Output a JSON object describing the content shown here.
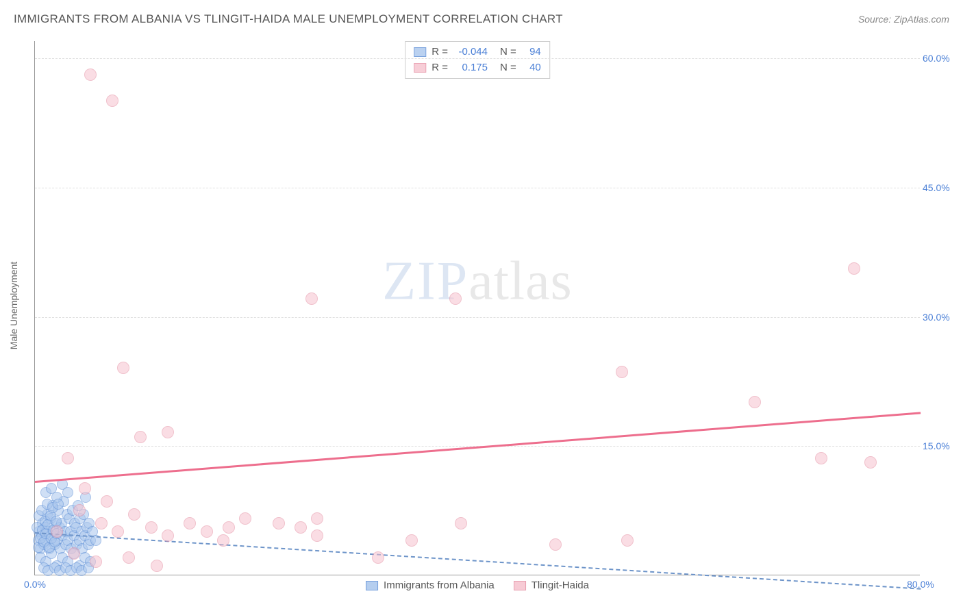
{
  "title": "IMMIGRANTS FROM ALBANIA VS TLINGIT-HAIDA MALE UNEMPLOYMENT CORRELATION CHART",
  "source": "Source: ZipAtlas.com",
  "watermark_a": "ZIP",
  "watermark_b": "atlas",
  "chart": {
    "type": "scatter",
    "ylabel": "Male Unemployment",
    "xlim": [
      0,
      80
    ],
    "ylim": [
      0,
      62
    ],
    "xticks": [
      {
        "v": 0,
        "label": "0.0%"
      },
      {
        "v": 80,
        "label": "80.0%"
      }
    ],
    "yticks": [
      {
        "v": 15,
        "label": "15.0%"
      },
      {
        "v": 30,
        "label": "30.0%"
      },
      {
        "v": 45,
        "label": "45.0%"
      },
      {
        "v": 60,
        "label": "60.0%"
      }
    ],
    "grid_color": "#e0e0e0",
    "background_color": "#ffffff",
    "axis_color": "#999999",
    "label_fontsize": 14,
    "tick_color": "#4a7fd6"
  },
  "series": [
    {
      "name": "Immigrants from Albania",
      "marker_fill": "#a9c6ed",
      "marker_stroke": "#5e8fd6",
      "marker_fill_opacity": 0.55,
      "marker_radius": 8,
      "R": "-0.044",
      "N": "94",
      "trend": {
        "x0": 0,
        "y0": 5.0,
        "x1": 80,
        "y1": -1.5,
        "color": "#6d94c9",
        "dashed": true,
        "width": 2
      },
      "points": [
        [
          0.3,
          4.0
        ],
        [
          0.4,
          5.0
        ],
        [
          0.5,
          3.0
        ],
        [
          0.6,
          4.5
        ],
        [
          0.7,
          6.0
        ],
        [
          0.8,
          3.5
        ],
        [
          0.9,
          5.5
        ],
        [
          1.0,
          4.0
        ],
        [
          1.1,
          7.0
        ],
        [
          1.2,
          5.0
        ],
        [
          1.3,
          3.0
        ],
        [
          1.4,
          6.5
        ],
        [
          1.5,
          4.5
        ],
        [
          1.6,
          8.0
        ],
        [
          1.7,
          5.0
        ],
        [
          1.8,
          3.5
        ],
        [
          1.9,
          6.0
        ],
        [
          2.0,
          4.0
        ],
        [
          2.1,
          7.5
        ],
        [
          2.2,
          5.5
        ],
        [
          2.3,
          3.0
        ],
        [
          2.4,
          6.0
        ],
        [
          2.5,
          4.5
        ],
        [
          2.6,
          8.5
        ],
        [
          2.7,
          5.0
        ],
        [
          2.8,
          3.5
        ],
        [
          2.9,
          7.0
        ],
        [
          3.0,
          4.0
        ],
        [
          3.1,
          6.5
        ],
        [
          3.2,
          5.0
        ],
        [
          3.3,
          3.0
        ],
        [
          3.4,
          7.5
        ],
        [
          3.5,
          4.5
        ],
        [
          3.6,
          6.0
        ],
        [
          3.7,
          5.5
        ],
        [
          3.8,
          3.5
        ],
        [
          3.9,
          8.0
        ],
        [
          4.0,
          4.0
        ],
        [
          4.1,
          6.5
        ],
        [
          4.2,
          5.0
        ],
        [
          4.3,
          3.0
        ],
        [
          4.4,
          7.0
        ],
        [
          4.5,
          4.5
        ],
        [
          4.6,
          9.0
        ],
        [
          4.7,
          5.5
        ],
        [
          4.8,
          3.5
        ],
        [
          4.9,
          6.0
        ],
        [
          5.0,
          4.0
        ],
        [
          1.0,
          9.5
        ],
        [
          1.5,
          10.0
        ],
        [
          2.0,
          9.0
        ],
        [
          2.5,
          10.5
        ],
        [
          3.0,
          9.5
        ],
        [
          0.5,
          2.0
        ],
        [
          1.0,
          1.5
        ],
        [
          1.5,
          2.5
        ],
        [
          2.0,
          1.0
        ],
        [
          2.5,
          2.0
        ],
        [
          3.0,
          1.5
        ],
        [
          3.5,
          2.5
        ],
        [
          4.0,
          1.0
        ],
        [
          4.5,
          2.0
        ],
        [
          5.0,
          1.5
        ],
        [
          0.8,
          0.8
        ],
        [
          1.2,
          0.5
        ],
        [
          1.8,
          0.8
        ],
        [
          2.2,
          0.5
        ],
        [
          2.8,
          0.8
        ],
        [
          3.2,
          0.5
        ],
        [
          3.8,
          0.8
        ],
        [
          4.2,
          0.5
        ],
        [
          4.8,
          0.8
        ],
        [
          0.2,
          5.5
        ],
        [
          0.3,
          3.2
        ],
        [
          0.4,
          6.8
        ],
        [
          0.5,
          4.2
        ],
        [
          0.6,
          7.5
        ],
        [
          0.7,
          5.2
        ],
        [
          0.8,
          3.8
        ],
        [
          0.9,
          6.2
        ],
        [
          1.0,
          4.8
        ],
        [
          1.1,
          8.2
        ],
        [
          1.2,
          5.8
        ],
        [
          1.3,
          3.2
        ],
        [
          1.4,
          6.8
        ],
        [
          1.5,
          4.2
        ],
        [
          1.6,
          7.8
        ],
        [
          1.7,
          5.2
        ],
        [
          1.8,
          3.8
        ],
        [
          1.9,
          6.2
        ],
        [
          2.0,
          4.8
        ],
        [
          2.1,
          8.2
        ],
        [
          5.2,
          5.0
        ],
        [
          5.5,
          4.0
        ]
      ]
    },
    {
      "name": "Tlingit-Haida",
      "marker_fill": "#f6c3ce",
      "marker_stroke": "#e58fa3",
      "marker_fill_opacity": 0.55,
      "marker_radius": 9,
      "R": "0.175",
      "N": "40",
      "trend": {
        "x0": 0,
        "y0": 11.0,
        "x1": 80,
        "y1": 19.0,
        "color": "#ed6e8d",
        "dashed": false,
        "width": 2.5
      },
      "points": [
        [
          5.0,
          58.0
        ],
        [
          7.0,
          55.0
        ],
        [
          3.0,
          13.5
        ],
        [
          9.5,
          16.0
        ],
        [
          12.0,
          16.5
        ],
        [
          8.0,
          24.0
        ],
        [
          25.0,
          32.0
        ],
        [
          38.0,
          32.0
        ],
        [
          53.0,
          23.5
        ],
        [
          65.0,
          20.0
        ],
        [
          74.0,
          35.5
        ],
        [
          71.0,
          13.5
        ],
        [
          75.5,
          13.0
        ],
        [
          4.0,
          7.5
        ],
        [
          6.0,
          6.0
        ],
        [
          7.5,
          5.0
        ],
        [
          9.0,
          7.0
        ],
        [
          10.5,
          5.5
        ],
        [
          12.0,
          4.5
        ],
        [
          14.0,
          6.0
        ],
        [
          15.5,
          5.0
        ],
        [
          17.0,
          4.0
        ],
        [
          17.5,
          5.5
        ],
        [
          19.0,
          6.5
        ],
        [
          22.0,
          6.0
        ],
        [
          24.0,
          5.5
        ],
        [
          25.5,
          4.5
        ],
        [
          25.5,
          6.5
        ],
        [
          31.0,
          2.0
        ],
        [
          34.0,
          4.0
        ],
        [
          38.5,
          6.0
        ],
        [
          47.0,
          3.5
        ],
        [
          53.5,
          4.0
        ],
        [
          3.5,
          2.5
        ],
        [
          5.5,
          1.5
        ],
        [
          8.5,
          2.0
        ],
        [
          11.0,
          1.0
        ],
        [
          4.5,
          10.0
        ],
        [
          6.5,
          8.5
        ],
        [
          2.0,
          5.0
        ]
      ]
    }
  ],
  "legend": {
    "bottom": [
      {
        "label": "Immigrants from Albania",
        "fill": "#a9c6ed",
        "stroke": "#5e8fd6"
      },
      {
        "label": "Tlingit-Haida",
        "fill": "#f6c3ce",
        "stroke": "#e58fa3"
      }
    ]
  },
  "stats_labels": {
    "R": "R =",
    "N": "N ="
  }
}
